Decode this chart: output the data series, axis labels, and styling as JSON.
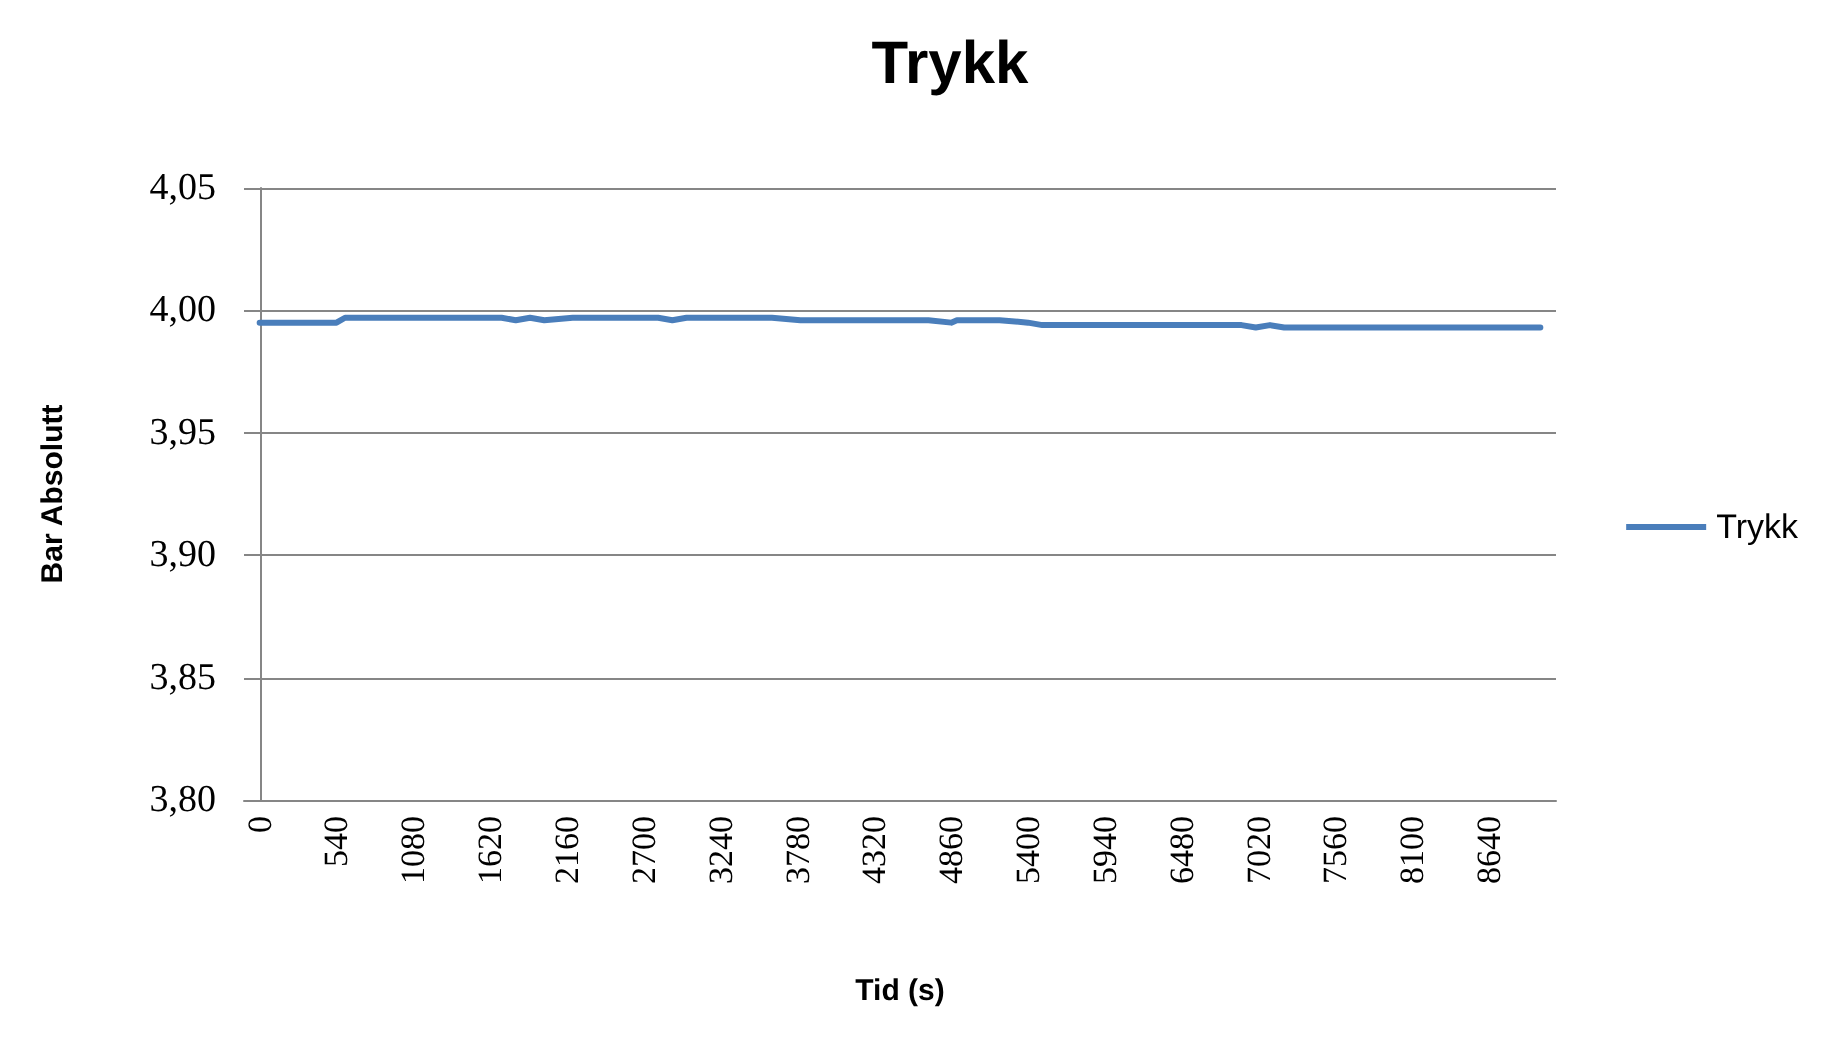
{
  "chart_data": {
    "type": "line",
    "title": "Trykk",
    "xlabel": "Tid (s)",
    "ylabel": "Bar Absolutt",
    "x": [
      0,
      300,
      540,
      600,
      900,
      1200,
      1500,
      1700,
      1800,
      1900,
      2000,
      2200,
      2500,
      2800,
      2900,
      3000,
      3300,
      3600,
      3800,
      4100,
      4400,
      4700,
      4860,
      4900,
      5200,
      5400,
      5500,
      5800,
      6100,
      6400,
      6700,
      6900,
      7000,
      7100,
      7200,
      7500,
      7800,
      8100,
      8400,
      8700,
      9000
    ],
    "series": [
      {
        "name": "Trykk",
        "color": "#4a7ebb",
        "values": [
          3.995,
          3.995,
          3.995,
          3.997,
          3.997,
          3.997,
          3.997,
          3.997,
          3.996,
          3.997,
          3.996,
          3.997,
          3.997,
          3.997,
          3.996,
          3.997,
          3.997,
          3.997,
          3.996,
          3.996,
          3.996,
          3.996,
          3.995,
          3.996,
          3.996,
          3.995,
          3.994,
          3.994,
          3.994,
          3.994,
          3.994,
          3.994,
          3.993,
          3.994,
          3.993,
          3.993,
          3.993,
          3.993,
          3.993,
          3.993,
          3.993
        ]
      }
    ],
    "xlim": [
      -110,
      9110
    ],
    "xticks": [
      0,
      540,
      1080,
      1620,
      2160,
      2700,
      3240,
      3780,
      4320,
      4860,
      5400,
      5940,
      6480,
      7020,
      7560,
      8100,
      8640
    ],
    "ylim": [
      3.8,
      4.05
    ],
    "yticks": [
      {
        "value": 3.8,
        "label": "3,80"
      },
      {
        "value": 3.85,
        "label": "3,85"
      },
      {
        "value": 3.9,
        "label": "3,90"
      },
      {
        "value": 3.95,
        "label": "3,95"
      },
      {
        "value": 4.0,
        "label": "4,00"
      },
      {
        "value": 4.05,
        "label": "4,05"
      }
    ],
    "grid": "y",
    "legend": "right",
    "marker": "none",
    "line_style": "solid"
  }
}
